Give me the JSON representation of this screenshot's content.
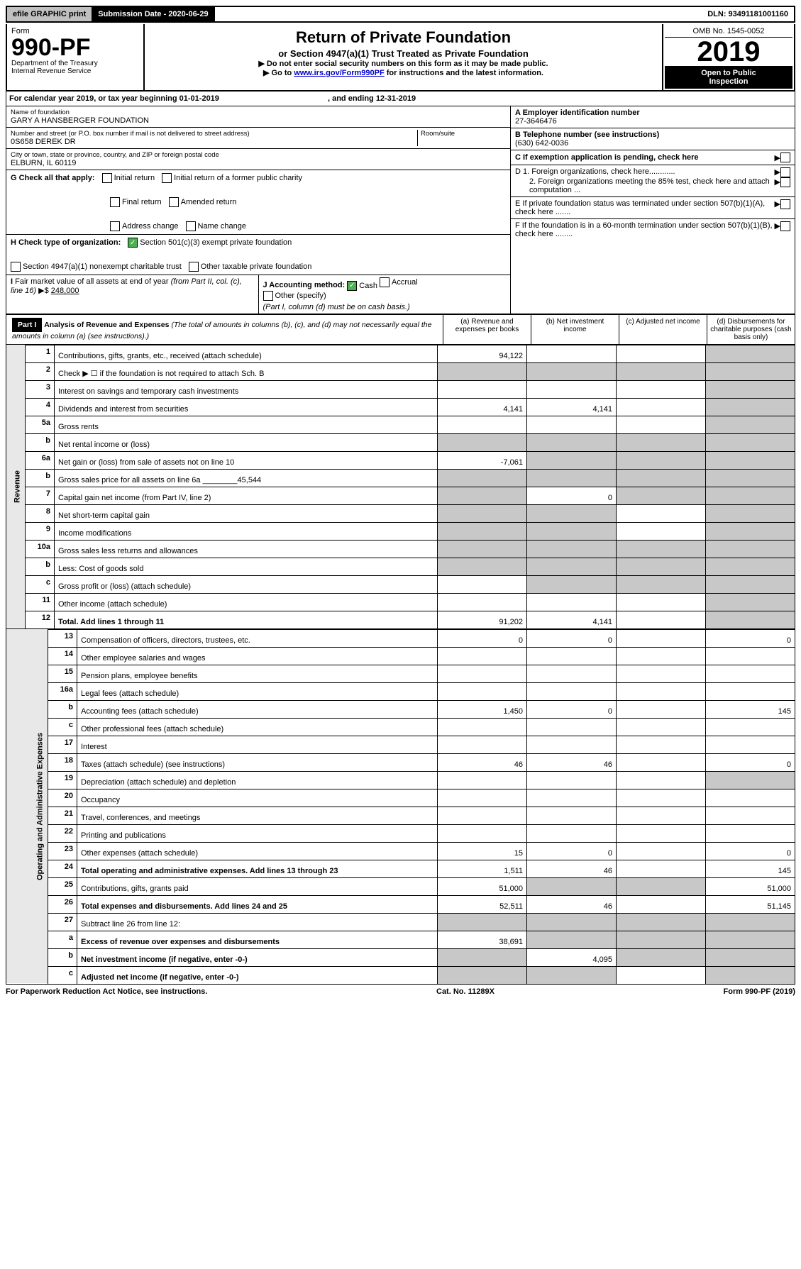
{
  "top": {
    "efile": "efile GRAPHIC print",
    "submission": "Submission Date - 2020-06-29",
    "dln": "DLN: 93491181001160"
  },
  "header": {
    "form_word": "Form",
    "form_number": "990-PF",
    "dept": "Department of the Treasury",
    "irs": "Internal Revenue Service",
    "title": "Return of Private Foundation",
    "subtitle": "or Section 4947(a)(1) Trust Treated as Private Foundation",
    "note1": "▶ Do not enter social security numbers on this form as it may be made public.",
    "note2_pre": "▶ Go to ",
    "note2_link": "www.irs.gov/Form990PF",
    "note2_post": " for instructions and the latest information.",
    "omb": "OMB No. 1545-0052",
    "year": "2019",
    "inspect1": "Open to Public",
    "inspect2": "Inspection"
  },
  "calendar": {
    "text": "For calendar year 2019, or tax year beginning 01-01-2019",
    "ending": ", and ending 12-31-2019"
  },
  "info": {
    "name_lbl": "Name of foundation",
    "name": "GARY A HANSBERGER FOUNDATION",
    "addr_lbl": "Number and street (or P.O. box number if mail is not delivered to street address)",
    "room_lbl": "Room/suite",
    "addr": "0S658 DEREK DR",
    "city_lbl": "City or town, state or province, country, and ZIP or foreign postal code",
    "city": "ELBURN, IL  60119",
    "ein_lbl": "A Employer identification number",
    "ein": "27-3646476",
    "phone_lbl": "B Telephone number (see instructions)",
    "phone": "(630) 642-0036",
    "c_lbl": "C If exemption application is pending, check here",
    "d1": "D 1. Foreign organizations, check here............",
    "d2": "2. Foreign organizations meeting the 85% test, check here and attach computation ...",
    "e_lbl": "E  If private foundation status was terminated under section 507(b)(1)(A), check here .......",
    "f_lbl": "F  If the foundation is in a 60-month termination under section 507(b)(1)(B), check here ........"
  },
  "g": {
    "label": "G Check all that apply:",
    "initial": "Initial return",
    "initial_former": "Initial return of a former public charity",
    "final": "Final return",
    "amended": "Amended return",
    "addr_change": "Address change",
    "name_change": "Name change"
  },
  "h": {
    "label": "H Check type of organization:",
    "s501": "Section 501(c)(3) exempt private foundation",
    "s4947": "Section 4947(a)(1) nonexempt charitable trust",
    "other": "Other taxable private foundation"
  },
  "i": {
    "label": "I Fair market value of all assets at end of year (from Part II, col. (c), line 16) ▶$",
    "value": "248,000"
  },
  "j": {
    "label": "J Accounting method:",
    "cash": "Cash",
    "accrual": "Accrual",
    "other": "Other (specify)",
    "note": "(Part I, column (d) must be on cash basis.)"
  },
  "part1": {
    "label": "Part I",
    "title": "Analysis of Revenue and Expenses",
    "desc": "(The total of amounts in columns (b), (c), and (d) may not necessarily equal the amounts in column (a) (see instructions).)",
    "col_a": "(a)    Revenue and expenses per books",
    "col_b": "(b)  Net investment income",
    "col_c": "(c)  Adjusted net income",
    "col_d": "(d)  Disbursements for charitable purposes (cash basis only)"
  },
  "side": {
    "revenue": "Revenue",
    "expenses": "Operating and Administrative Expenses"
  },
  "rows": [
    {
      "n": "1",
      "label": "Contributions, gifts, grants, etc., received (attach schedule)",
      "a": "94,122",
      "d_grey": true
    },
    {
      "n": "2",
      "label": "Check ▶ ☐ if the foundation is not required to attach Sch. B",
      "all_grey": true
    },
    {
      "n": "3",
      "label": "Interest on savings and temporary cash investments",
      "d_grey": true
    },
    {
      "n": "4",
      "label": "Dividends and interest from securities",
      "a": "4,141",
      "b": "4,141",
      "d_grey": true
    },
    {
      "n": "5a",
      "label": "Gross rents",
      "d_grey": true
    },
    {
      "n": "b",
      "label": "Net rental income or (loss)",
      "all_grey": true
    },
    {
      "n": "6a",
      "label": "Net gain or (loss) from sale of assets not on line 10",
      "a": "-7,061",
      "bc_grey": true,
      "d_grey": true
    },
    {
      "n": "b",
      "label": "Gross sales price for all assets on line 6a ________45,544",
      "all_grey": true
    },
    {
      "n": "7",
      "label": "Capital gain net income (from Part IV, line 2)",
      "a_grey": true,
      "b": "0",
      "c_grey": true,
      "d_grey": true
    },
    {
      "n": "8",
      "label": "Net short-term capital gain",
      "ab_grey": true,
      "d_grey": true
    },
    {
      "n": "9",
      "label": "Income modifications",
      "ab_grey": true,
      "d_grey": true
    },
    {
      "n": "10a",
      "label": "Gross sales less returns and allowances",
      "all_grey": true
    },
    {
      "n": "b",
      "label": "Less: Cost of goods sold",
      "all_grey": true
    },
    {
      "n": "c",
      "label": "Gross profit or (loss) (attach schedule)",
      "bc_grey": true,
      "d_grey": true
    },
    {
      "n": "11",
      "label": "Other income (attach schedule)",
      "d_grey": true
    },
    {
      "n": "12",
      "label": "Total. Add lines 1 through 11",
      "bold": true,
      "a": "91,202",
      "b": "4,141",
      "d_grey": true
    }
  ],
  "exp_rows": [
    {
      "n": "13",
      "label": "Compensation of officers, directors, trustees, etc.",
      "a": "0",
      "b": "0",
      "d": "0"
    },
    {
      "n": "14",
      "label": "Other employee salaries and wages"
    },
    {
      "n": "15",
      "label": "Pension plans, employee benefits"
    },
    {
      "n": "16a",
      "label": "Legal fees (attach schedule)"
    },
    {
      "n": "b",
      "label": "Accounting fees (attach schedule)",
      "a": "1,450",
      "b": "0",
      "d": "145"
    },
    {
      "n": "c",
      "label": "Other professional fees (attach schedule)"
    },
    {
      "n": "17",
      "label": "Interest"
    },
    {
      "n": "18",
      "label": "Taxes (attach schedule) (see instructions)",
      "a": "46",
      "b": "46",
      "d": "0"
    },
    {
      "n": "19",
      "label": "Depreciation (attach schedule) and depletion",
      "d_grey": true
    },
    {
      "n": "20",
      "label": "Occupancy"
    },
    {
      "n": "21",
      "label": "Travel, conferences, and meetings"
    },
    {
      "n": "22",
      "label": "Printing and publications"
    },
    {
      "n": "23",
      "label": "Other expenses (attach schedule)",
      "a": "15",
      "b": "0",
      "d": "0"
    },
    {
      "n": "24",
      "label": "Total operating and administrative expenses. Add lines 13 through 23",
      "bold": true,
      "a": "1,511",
      "b": "46",
      "d": "145"
    },
    {
      "n": "25",
      "label": "Contributions, gifts, grants paid",
      "a": "51,000",
      "bc_grey": true,
      "d": "51,000"
    },
    {
      "n": "26",
      "label": "Total expenses and disbursements. Add lines 24 and 25",
      "bold": true,
      "a": "52,511",
      "b": "46",
      "d": "51,145"
    },
    {
      "n": "27",
      "label": "Subtract line 26 from line 12:",
      "all_grey": true
    },
    {
      "n": "a",
      "label": "Excess of revenue over expenses and disbursements",
      "bold": true,
      "a": "38,691",
      "bcd_grey": true
    },
    {
      "n": "b",
      "label": "Net investment income (if negative, enter -0-)",
      "bold": true,
      "a_grey": true,
      "b": "4,095",
      "cd_grey": true
    },
    {
      "n": "c",
      "label": "Adjusted net income (if negative, enter -0-)",
      "bold": true,
      "ab_grey": true,
      "d_grey": true
    }
  ],
  "footer": {
    "left": "For Paperwork Reduction Act Notice, see instructions.",
    "mid": "Cat. No. 11289X",
    "right": "Form 990-PF (2019)"
  }
}
